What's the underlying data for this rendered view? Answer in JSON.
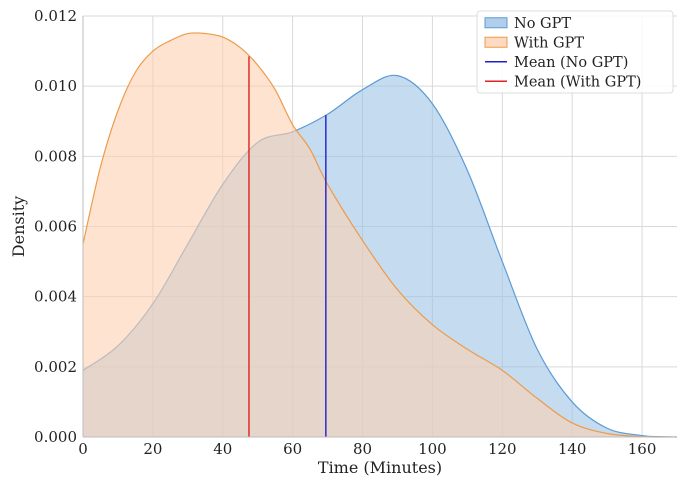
{
  "chart_data": {
    "type": "area",
    "title": "",
    "xlabel": "Time (Minutes)",
    "ylabel": "Density",
    "xlim": [
      0,
      170
    ],
    "ylim": [
      0,
      0.012
    ],
    "x_ticks": [
      0,
      20,
      40,
      60,
      80,
      100,
      120,
      140,
      160
    ],
    "y_ticks": [
      0.0,
      0.002,
      0.004,
      0.006,
      0.008,
      0.01,
      0.012
    ],
    "y_tick_labels": [
      "0.000",
      "0.002",
      "0.004",
      "0.006",
      "0.008",
      "0.010",
      "0.012"
    ],
    "x_tick_labels": [
      "0",
      "20",
      "40",
      "60",
      "80",
      "100",
      "120",
      "140",
      "160"
    ],
    "grid": true,
    "legend_position": "top-right",
    "series": [
      {
        "name": "No GPT",
        "kind": "density",
        "color": "#5b9bd5",
        "fill": "#9dc3e6",
        "x": [
          0,
          10,
          20,
          30,
          40,
          50,
          60,
          70,
          80,
          90,
          100,
          110,
          120,
          130,
          140,
          150,
          160,
          165,
          170
        ],
        "y": [
          0.0019,
          0.0026,
          0.0038,
          0.0055,
          0.0072,
          0.0084,
          0.0087,
          0.0092,
          0.0099,
          0.0103,
          0.0095,
          0.0076,
          0.005,
          0.0025,
          0.001,
          0.00025,
          4e-05,
          1e-05,
          0.0
        ]
      },
      {
        "name": "With GPT",
        "kind": "density",
        "color": "#ed9b4a",
        "fill": "#fdd1b0",
        "x": [
          0,
          5,
          10,
          15,
          20,
          25,
          30,
          35,
          40,
          45,
          50,
          55,
          60,
          65,
          70,
          80,
          90,
          100,
          110,
          120,
          130,
          140,
          150,
          160,
          165,
          170
        ],
        "y": [
          0.0055,
          0.0077,
          0.0093,
          0.0104,
          0.011,
          0.0113,
          0.0115,
          0.0115,
          0.0114,
          0.0111,
          0.0106,
          0.0099,
          0.0089,
          0.0082,
          0.0072,
          0.0056,
          0.0042,
          0.0032,
          0.0025,
          0.0019,
          0.0011,
          0.0004,
          0.0001,
          1e-05,
          0.0,
          0.0
        ]
      }
    ],
    "means": [
      {
        "name": "Mean (No GPT)",
        "x": 69.5,
        "color": "#1f1fcc"
      },
      {
        "name": "Mean (With GPT)",
        "x": 47.5,
        "color": "#dd2222"
      }
    ],
    "legend": [
      {
        "label": "No GPT",
        "kind": "patch",
        "fill": "#9dc3e6",
        "stroke": "#5b9bd5"
      },
      {
        "label": "With GPT",
        "kind": "patch",
        "fill": "#fdd1b0",
        "stroke": "#ed9b4a"
      },
      {
        "label": "Mean (No GPT)",
        "kind": "line",
        "stroke": "#1f1fcc"
      },
      {
        "label": "Mean (With GPT)",
        "kind": "line",
        "stroke": "#dd2222"
      }
    ]
  }
}
